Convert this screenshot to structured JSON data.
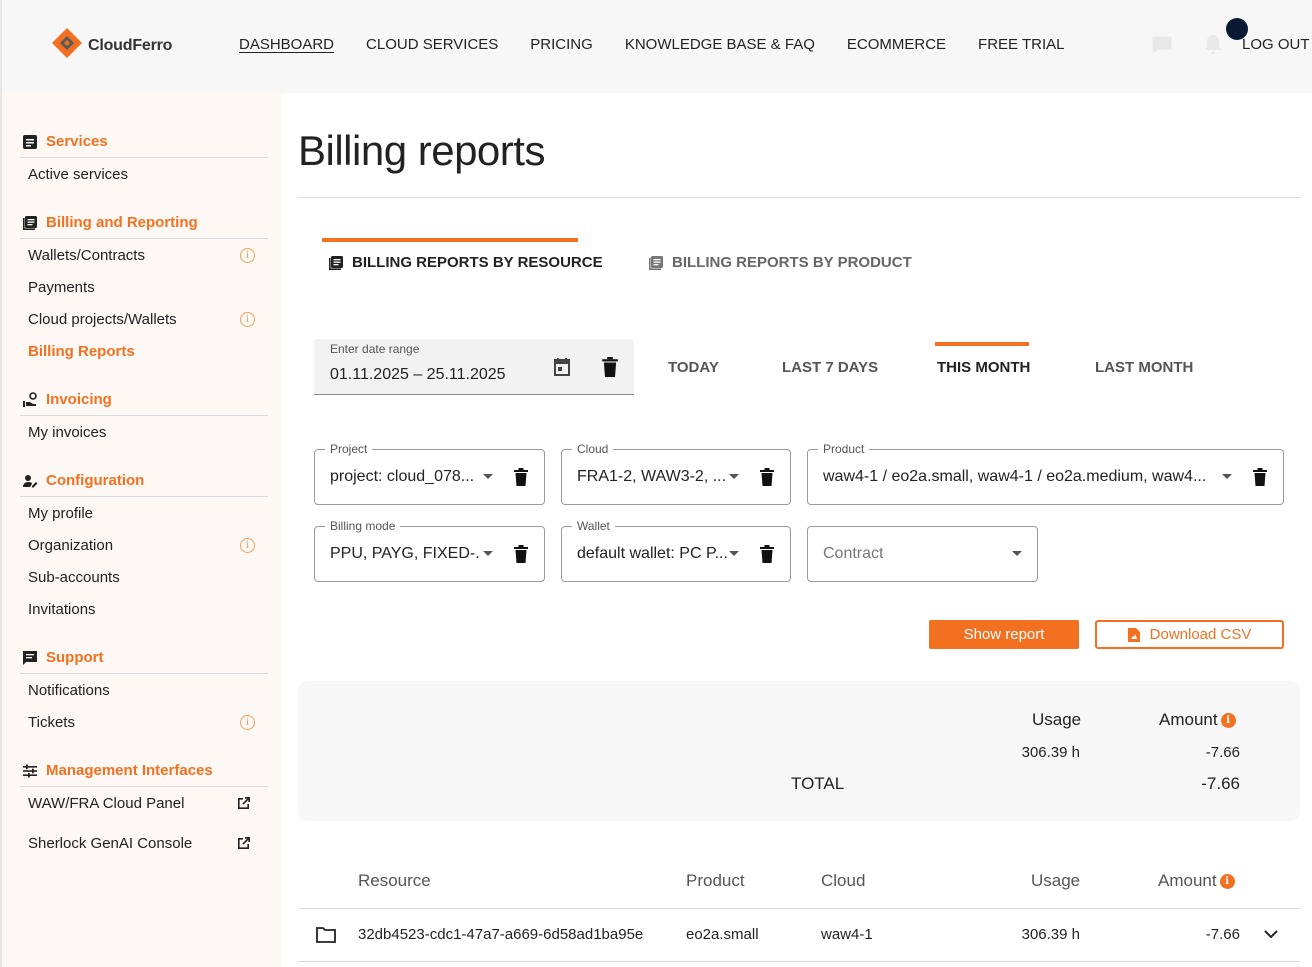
{
  "header": {
    "logo": "CloudFerro",
    "nav": [
      "DASHBOARD",
      "CLOUD SERVICES",
      "PRICING",
      "KNOWLEDGE BASE & FAQ",
      "ECOMMERCE",
      "FREE TRIAL"
    ],
    "logout": "LOG OUT"
  },
  "sidebar": {
    "services": {
      "title": "Services",
      "items": [
        "Active services"
      ]
    },
    "billing": {
      "title": "Billing and Reporting",
      "items": [
        "Wallets/Contracts",
        "Payments",
        "Cloud projects/Wallets",
        "Billing Reports"
      ]
    },
    "invoicing": {
      "title": "Invoicing",
      "items": [
        "My invoices"
      ]
    },
    "configuration": {
      "title": "Configuration",
      "items": [
        "My profile",
        "Organization",
        "Sub-accounts",
        "Invitations"
      ]
    },
    "support": {
      "title": "Support",
      "items": [
        "Notifications",
        "Tickets"
      ]
    },
    "management": {
      "title": "Management Interfaces",
      "items": [
        "WAW/FRA Cloud Panel",
        "Sherlock GenAI Console"
      ]
    }
  },
  "main": {
    "title": "Billing reports",
    "tabs": [
      "BILLING REPORTS BY RESOURCE",
      "BILLING REPORTS BY PRODUCT"
    ],
    "date": {
      "label": "Enter date range",
      "value": "01.11.2025 – 25.11.2025"
    },
    "ranges": [
      "TODAY",
      "LAST 7 DAYS",
      "THIS MONTH",
      "LAST MONTH"
    ],
    "filters": {
      "project": {
        "label": "Project",
        "value": "project: cloud_078..."
      },
      "cloud": {
        "label": "Cloud",
        "value": "FRA1-2, WAW3-2, ..."
      },
      "product": {
        "label": "Product",
        "value": "waw4-1 / eo2a.small, waw4-1 / eo2a.medium, waw4..."
      },
      "billing_mode": {
        "label": "Billing mode",
        "value": "PPU, PAYG, FIXED-..."
      },
      "wallet": {
        "label": "Wallet",
        "value": "default wallet: PC P..."
      },
      "contract": {
        "placeholder": "Contract"
      }
    },
    "buttons": {
      "show": "Show report",
      "csv": "Download CSV"
    },
    "summary": {
      "usage_label": "Usage",
      "amount_label": "Amount",
      "usage": "306.39 h",
      "amount": "-7.66",
      "total_label": "TOTAL",
      "total": "-7.66"
    },
    "table": {
      "headers": [
        "Resource",
        "Product",
        "Cloud",
        "Usage",
        "Amount"
      ],
      "rows": [
        {
          "resource": "32db4523-cdc1-47a7-a669-6d58ad1ba95e",
          "product": "eo2a.small",
          "cloud": "waw4-1",
          "usage": "306.39 h",
          "amount": "-7.66"
        }
      ]
    }
  },
  "colors": {
    "accent": "#f37021",
    "sidebar_bg": "#fdf8f3",
    "header_bg": "#f7f7f7"
  }
}
